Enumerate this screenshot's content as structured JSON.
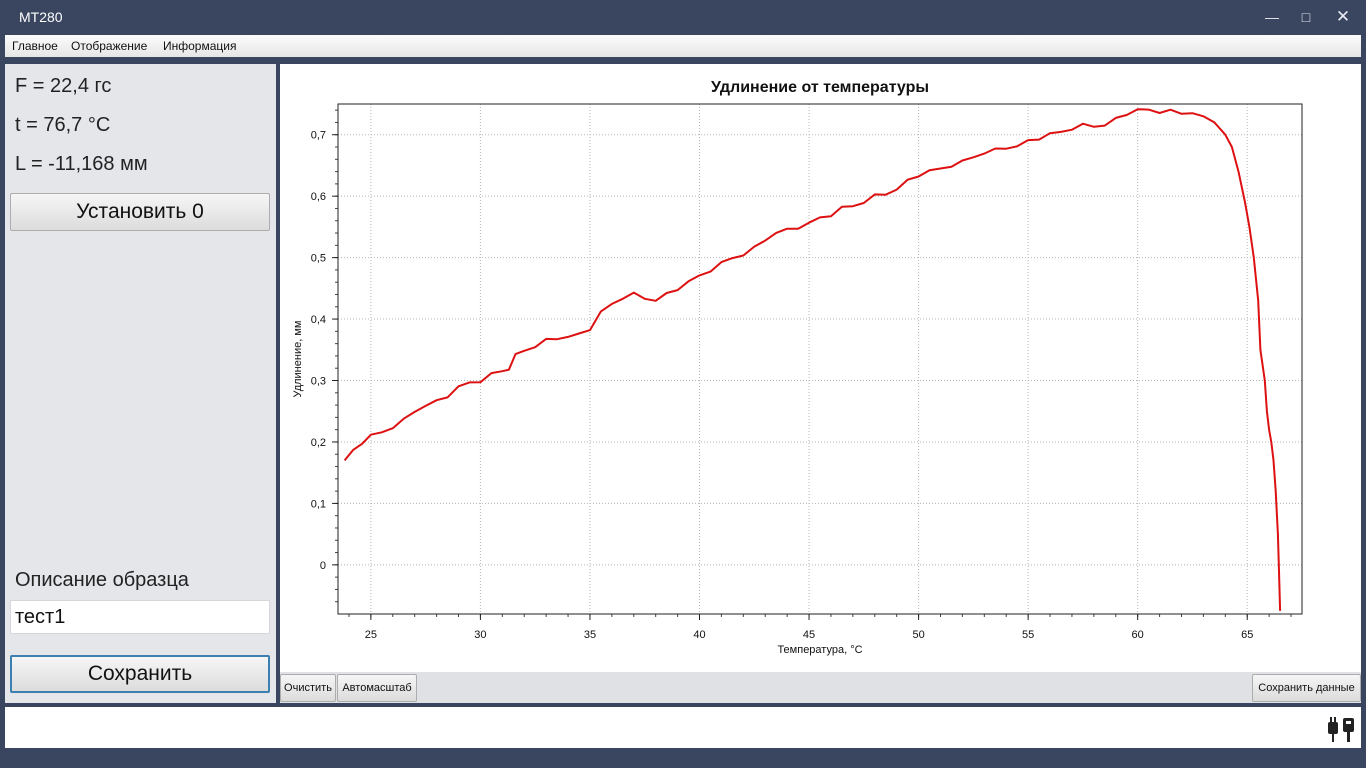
{
  "window": {
    "title": "MT280",
    "min_icon": "minimize-icon",
    "max_icon": "maximize-icon",
    "close_icon": "close-icon"
  },
  "menu": {
    "items": [
      "Главное",
      "Отображение",
      "Информация"
    ]
  },
  "readouts": {
    "force": "F = 22,4 гс",
    "temperature": "t = 76,7 °C",
    "length": "L = -11,168 мм"
  },
  "buttons": {
    "zero": "Установить 0",
    "save": "Сохранить",
    "clear": "Очистить",
    "autoscale": "Автомасштаб",
    "save_data": "Сохранить данные"
  },
  "sample": {
    "label": "Описание образца",
    "value": "тест1"
  },
  "status": {
    "icon": "plug-connected-icon"
  },
  "chart_data": {
    "type": "line",
    "title": "Удлинение от температуры",
    "xlabel": "Температура, °C",
    "ylabel": "Удлинение, мм",
    "xlim": [
      23.5,
      67.5
    ],
    "ylim": [
      -0.08,
      0.75
    ],
    "xticks": [
      25,
      30,
      35,
      40,
      45,
      50,
      55,
      60,
      65
    ],
    "yticks": [
      0,
      0.1,
      0.2,
      0.3,
      0.4,
      0.5,
      0.6,
      0.7
    ],
    "ytick_labels": [
      "0",
      "0,1",
      "0,2",
      "0,3",
      "0,4",
      "0,5",
      "0,6",
      "0,7"
    ],
    "grid": true,
    "color": "#dd1111",
    "series": [
      {
        "x": [
          23.8,
          24.2,
          24.6,
          25.0,
          25.5,
          26.0,
          26.5,
          27.0,
          27.5,
          28.0,
          28.5,
          29.0,
          29.5,
          30.0,
          30.5,
          31.0,
          31.3,
          31.6,
          32.0,
          32.5,
          33.0,
          33.5,
          34.0,
          34.5,
          35.0,
          35.5,
          36.0,
          36.5,
          37.0,
          37.5,
          38.0,
          38.5,
          39.0,
          39.5,
          40.0,
          40.5,
          41.0,
          41.5,
          42.0,
          42.5,
          43.0,
          43.5,
          44.0,
          44.5,
          45.0,
          45.5,
          46.0,
          46.5,
          47.0,
          47.5,
          48.0,
          48.5,
          49.0,
          49.5,
          50.0,
          50.5,
          51.0,
          51.5,
          52.0,
          52.5,
          53.0,
          53.5,
          54.0,
          54.5,
          55.0,
          55.5,
          56.0,
          56.5,
          57.0,
          57.5,
          58.0,
          58.5,
          59.0,
          59.5,
          60.0,
          60.5,
          61.0,
          61.5,
          62.0,
          62.5,
          63.0,
          63.5,
          64.0,
          64.3,
          64.6,
          64.9,
          65.1,
          65.3,
          65.5,
          65.6,
          65.8,
          65.9,
          66.0,
          66.1,
          66.2,
          66.3,
          66.4,
          66.45,
          66.5
        ],
        "y": [
          0.17,
          0.185,
          0.2,
          0.21,
          0.215,
          0.225,
          0.235,
          0.25,
          0.26,
          0.265,
          0.275,
          0.29,
          0.295,
          0.3,
          0.31,
          0.315,
          0.32,
          0.34,
          0.35,
          0.355,
          0.365,
          0.37,
          0.37,
          0.375,
          0.385,
          0.41,
          0.425,
          0.435,
          0.44,
          0.435,
          0.43,
          0.44,
          0.45,
          0.46,
          0.47,
          0.48,
          0.49,
          0.5,
          0.505,
          0.515,
          0.53,
          0.54,
          0.545,
          0.55,
          0.555,
          0.565,
          0.57,
          0.58,
          0.585,
          0.59,
          0.6,
          0.605,
          0.61,
          0.625,
          0.635,
          0.64,
          0.645,
          0.65,
          0.655,
          0.665,
          0.67,
          0.675,
          0.68,
          0.68,
          0.69,
          0.695,
          0.7,
          0.705,
          0.71,
          0.715,
          0.715,
          0.715,
          0.725,
          0.735,
          0.74,
          0.74,
          0.738,
          0.738,
          0.735,
          0.735,
          0.73,
          0.72,
          0.7,
          0.68,
          0.64,
          0.59,
          0.55,
          0.5,
          0.43,
          0.35,
          0.3,
          0.25,
          0.22,
          0.2,
          0.17,
          0.12,
          0.05,
          -0.01,
          -0.075
        ]
      }
    ]
  }
}
